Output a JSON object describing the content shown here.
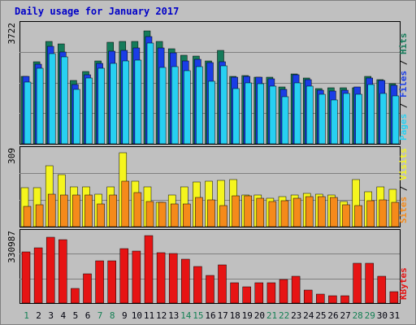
{
  "title": "Daily usage for January 2017",
  "chart_data": {
    "type": "bar",
    "title": "Daily usage for January 2017",
    "days": [
      "1",
      "2",
      "3",
      "4",
      "5",
      "6",
      "7",
      "8",
      "9",
      "10",
      "11",
      "12",
      "13",
      "14",
      "15",
      "16",
      "17",
      "18",
      "19",
      "20",
      "21",
      "22",
      "23",
      "24",
      "25",
      "26",
      "27",
      "28",
      "29",
      "30",
      "31"
    ],
    "weekend_days": [
      "1",
      "7",
      "8",
      "14",
      "15",
      "21",
      "22",
      "28",
      "29"
    ],
    "colors": {
      "hits": "#157b5a",
      "files": "#1a3de6",
      "pages": "#27d0f2",
      "visits": "#f5f51e",
      "sites": "#f58a1a",
      "kbytes": "#e61414",
      "weekday_label": "#00000c",
      "weekend_label": "#148054"
    },
    "panels": [
      {
        "name": "usage",
        "max_label": "3722",
        "ymax": 3722,
        "legend": [
          "Pages",
          "Files",
          "Hits"
        ],
        "series": [
          {
            "name": "Hits",
            "values": [
              2155,
              2632,
              3285,
              3191,
              2032,
              2319,
              2655,
              3245,
              3276,
              3272,
              3612,
              3285,
              3043,
              2847,
              2801,
              2663,
              2986,
              2165,
              2181,
              2129,
              2137,
              1828,
              2240,
              2102,
              1764,
              1806,
              1799,
              1798,
              2151,
              2052,
              1916
            ]
          },
          {
            "name": "Files",
            "values": [
              2155,
              2546,
              3131,
              2940,
              1905,
              2220,
              2564,
              2956,
              2989,
              3066,
              3438,
              3073,
              2925,
              2664,
              2707,
              2610,
              2617,
              2145,
              2155,
              2132,
              2077,
              1745,
              2205,
              2069,
              1730,
              1679,
              1726,
              1818,
              2104,
              2019,
              1874
            ]
          },
          {
            "name": "Pages",
            "values": [
              1973,
              2408,
              2885,
              2785,
              1742,
              2107,
              2408,
              2571,
              2657,
              2692,
              3216,
              2449,
              2480,
              2338,
              2461,
              2001,
              2488,
              1775,
              1950,
              1915,
              1836,
              1519,
              1961,
              1845,
              1580,
              1412,
              1605,
              1600,
              1906,
              1613,
              1525
            ]
          }
        ]
      },
      {
        "name": "visits",
        "max_label": "309",
        "ymax": 309,
        "legend": [
          "Sites",
          "Visits"
        ],
        "series": [
          {
            "name": "Visits",
            "values": [
              163,
              163,
              253,
              216,
              166,
              166,
              135,
              166,
              309,
              190,
              166,
              103,
              134,
              166,
              187,
              190,
              193,
              196,
              133,
              133,
              119,
              126,
              131,
              140,
              135,
              134,
              104,
              198,
              145,
              166,
              157
            ]
          },
          {
            "name": "Sites",
            "values": [
              85,
              90,
              135,
              134,
              134,
              134,
              94,
              134,
              190,
              143,
              104,
              101,
              96,
              96,
              121,
              112,
              87,
              128,
              128,
              120,
              105,
              108,
              118,
              127,
              127,
              122,
              90,
              89,
              108,
              113,
              103
            ]
          }
        ]
      },
      {
        "name": "kbytes",
        "max_label": "330987",
        "ymax": 330987,
        "legend": [
          "KBytes"
        ],
        "series": [
          {
            "name": "KBytes",
            "values": [
              253000,
              272000,
              325000,
              310000,
              71000,
              142000,
              206000,
              206000,
              266000,
              255000,
              330987,
              247000,
              244000,
              217000,
              181000,
              136000,
              187000,
              98000,
              79000,
              101000,
              98000,
              114000,
              130000,
              65000,
              42000,
              37000,
              37000,
              194000,
              194000,
              132000,
              57000
            ]
          }
        ]
      }
    ]
  }
}
